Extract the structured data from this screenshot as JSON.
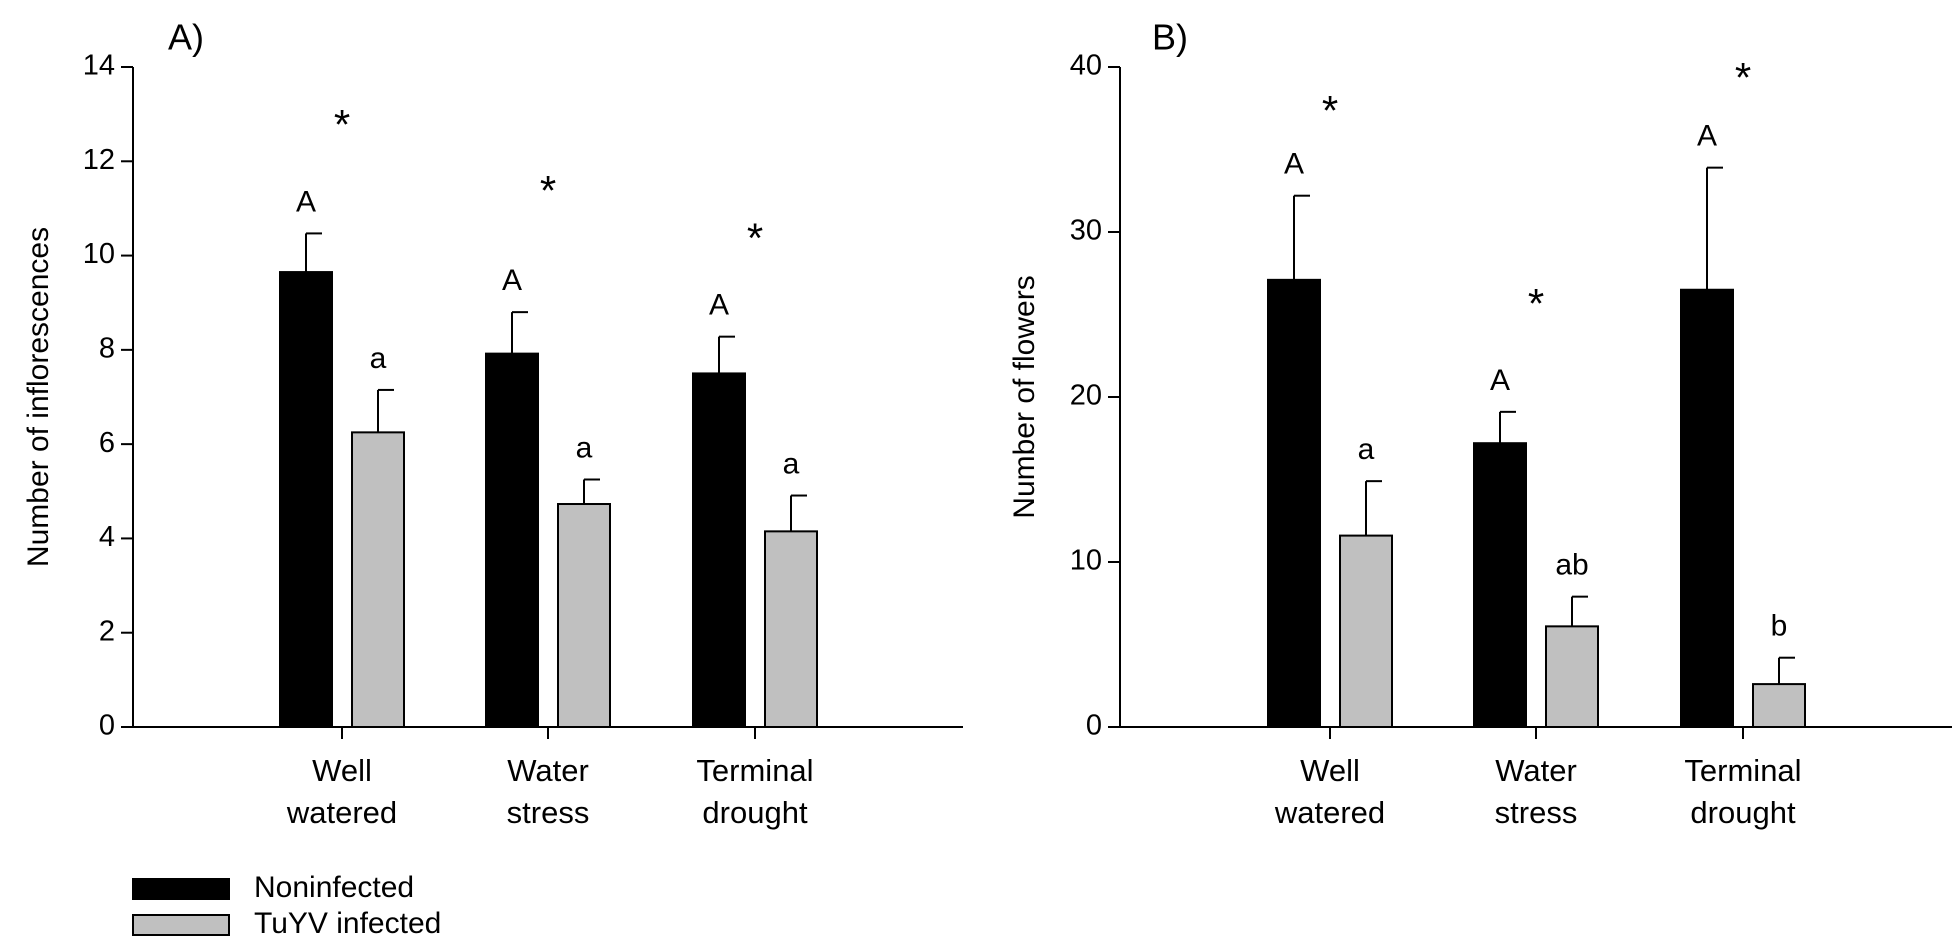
{
  "colors": {
    "noninfected": "#000000",
    "infected": "#c0c0c0",
    "axis": "#000000"
  },
  "legend": [
    {
      "label": "Noninfected",
      "color": "#000000"
    },
    {
      "label": "TuYV infected",
      "color": "#c0c0c0"
    }
  ],
  "chart_data": [
    {
      "type": "bar",
      "title": "A)",
      "xlabel": "",
      "ylabel": "Number of inflorescences",
      "ylim": [
        0,
        14
      ],
      "yticks": [
        0,
        2,
        4,
        6,
        8,
        10,
        12,
        14
      ],
      "categories": [
        [
          "Well",
          "watered"
        ],
        [
          "Water",
          "stress"
        ],
        [
          "Terminal",
          "drought"
        ]
      ],
      "series": [
        {
          "name": "Noninfected",
          "values": [
            9.65,
            7.92,
            7.5
          ],
          "errors": [
            0.82,
            0.88,
            0.78
          ],
          "letters": [
            "A",
            "A",
            "A"
          ]
        },
        {
          "name": "TuYV infected",
          "values": [
            6.25,
            4.73,
            4.15
          ],
          "errors": [
            0.9,
            0.52,
            0.76
          ],
          "letters": [
            "a",
            "a",
            "a"
          ]
        }
      ],
      "significance": [
        "*",
        "*",
        "*"
      ],
      "significance_y": [
        13.0,
        11.6,
        10.6
      ]
    },
    {
      "type": "bar",
      "title": "B)",
      "xlabel": "",
      "ylabel": "Number of flowers",
      "ylim": [
        0,
        40
      ],
      "yticks": [
        0,
        10,
        20,
        30,
        40
      ],
      "categories": [
        [
          "Well",
          "watered"
        ],
        [
          "Water",
          "stress"
        ],
        [
          "Terminal",
          "drought"
        ]
      ],
      "series": [
        {
          "name": "Noninfected",
          "values": [
            27.1,
            17.2,
            26.5
          ],
          "errors": [
            5.1,
            1.9,
            7.4
          ],
          "letters": [
            "A",
            "A",
            "A"
          ]
        },
        {
          "name": "TuYV infected",
          "values": [
            11.6,
            6.1,
            2.6
          ],
          "errors": [
            3.3,
            1.8,
            1.6
          ],
          "letters": [
            "a",
            "ab",
            "b"
          ]
        }
      ],
      "significance": [
        "*",
        "*",
        "*"
      ],
      "significance_y": [
        38.0,
        26.3,
        40.0
      ]
    }
  ]
}
